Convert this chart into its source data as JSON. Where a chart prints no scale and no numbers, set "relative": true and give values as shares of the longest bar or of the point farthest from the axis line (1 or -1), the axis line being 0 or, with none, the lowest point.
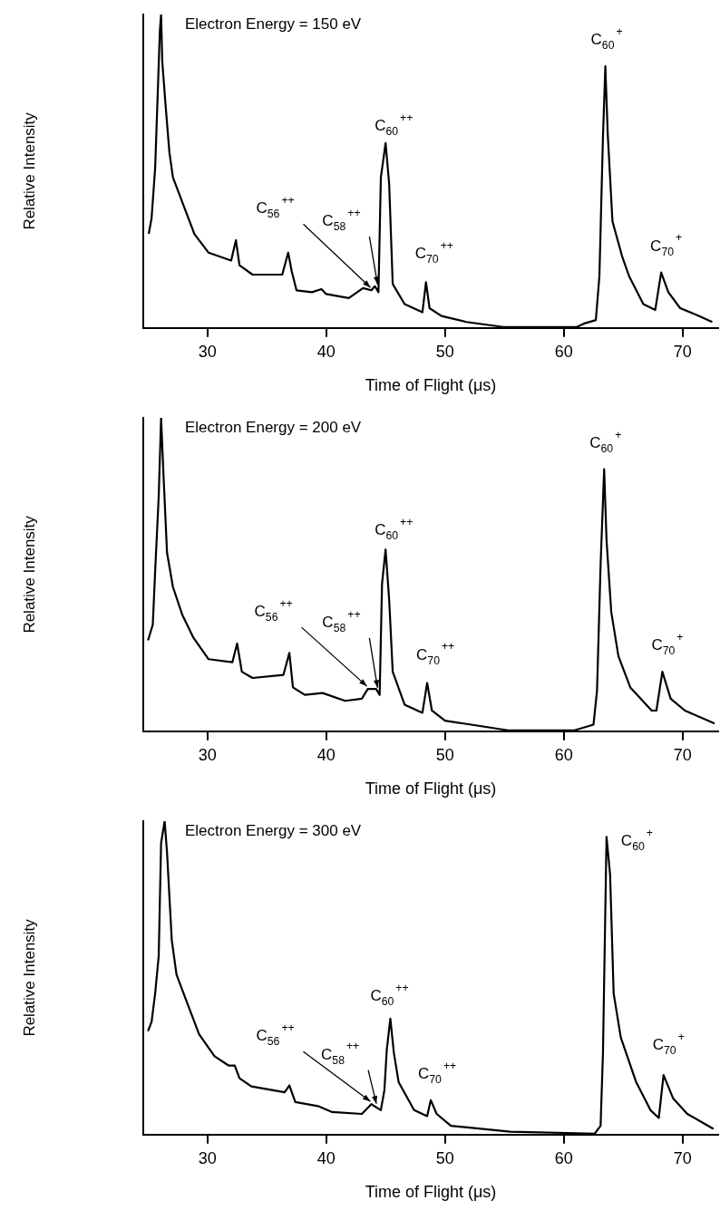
{
  "chart_data": [
    {
      "type": "line",
      "title": "Electron Energy = 150 eV",
      "xlabel": "Time of Flight (μs)",
      "ylabel": "Relative Intensity",
      "relative": true,
      "grid": false,
      "legend": false,
      "marker": "none",
      "color": "#000000",
      "xlim": [
        24.6,
        73
      ],
      "xticks": [
        30,
        40,
        50,
        60,
        70
      ],
      "x": [
        25.06,
        25.3,
        25.6,
        25.8,
        26.0,
        26.1,
        26.2,
        26.5,
        26.8,
        27.1,
        27.6,
        28.2,
        28.9,
        30.1,
        32.0,
        32.4,
        32.7,
        33.8,
        36.3,
        36.8,
        37.1,
        37.5,
        38.8,
        39.6,
        40.0,
        41.9,
        43.1,
        43.8,
        44.1,
        44.4,
        44.6,
        45.0,
        45.3,
        45.6,
        46.6,
        48.1,
        48.4,
        48.7,
        49.7,
        51.8,
        54.9,
        61.1,
        61.8,
        62.7,
        63.0,
        63.3,
        63.5,
        63.7,
        64.1,
        64.9,
        65.5,
        66.7,
        67.7,
        68.2,
        68.8,
        69.8,
        71.4,
        72.5
      ],
      "values": [
        0.3,
        0.35,
        0.51,
        0.73,
        0.95,
        1,
        0.85,
        0.7,
        0.56,
        0.48,
        0.43,
        0.37,
        0.3,
        0.24,
        0.215,
        0.28,
        0.2,
        0.17,
        0.17,
        0.24,
        0.18,
        0.12,
        0.114,
        0.124,
        0.108,
        0.095,
        0.127,
        0.12,
        0.133,
        0.114,
        0.48,
        0.59,
        0.46,
        0.14,
        0.076,
        0.05,
        0.146,
        0.063,
        0.038,
        0.019,
        0.003,
        0.003,
        0.015,
        0.025,
        0.165,
        0.61,
        0.835,
        0.62,
        0.34,
        0.23,
        0.165,
        0.076,
        0.057,
        0.177,
        0.114,
        0.063,
        0.038,
        0.019
      ],
      "annotations": [
        {
          "text": "C$_{56}$$^{++}$",
          "x": 43.8,
          "y": 0.12
        },
        {
          "text": "C$_{58}$$^{++}$",
          "x": 44.4,
          "y": 0.13
        },
        {
          "text": "C$_{60}$$^{++}$",
          "x": 45.0,
          "y": 0.59
        },
        {
          "text": "C$_{70}$$^{++}$",
          "x": 48.4,
          "y": 0.146
        },
        {
          "text": "C$_{60}$$^{+}$",
          "x": 63.5,
          "y": 0.835
        },
        {
          "text": "C$_{70}$$^{+}$",
          "x": 68.2,
          "y": 0.177
        }
      ]
    },
    {
      "type": "line",
      "title": "Electron Energy = 200 eV",
      "xlabel": "Time of Flight (μs)",
      "ylabel": "Relative Intensity",
      "relative": true,
      "grid": false,
      "legend": false,
      "marker": "none",
      "color": "#000000",
      "xlim": [
        24.6,
        73
      ],
      "xticks": [
        30,
        40,
        50,
        60,
        70
      ],
      "x": [
        25.0,
        25.4,
        25.6,
        25.9,
        26.1,
        26.3,
        26.6,
        27.1,
        27.9,
        28.8,
        30.1,
        32.1,
        32.5,
        32.9,
        33.8,
        36.4,
        36.9,
        37.2,
        38.2,
        39.7,
        41.6,
        43.0,
        43.5,
        44.2,
        44.5,
        44.7,
        45.0,
        45.3,
        45.6,
        46.6,
        48.1,
        48.5,
        48.9,
        50.0,
        52.2,
        55.3,
        60.9,
        62.5,
        62.8,
        63.1,
        63.4,
        63.6,
        64.0,
        64.6,
        65.6,
        67.4,
        67.8,
        68.3,
        69.0,
        70.2,
        72.7
      ],
      "values": [
        0.29,
        0.34,
        0.51,
        0.75,
        1,
        0.82,
        0.57,
        0.46,
        0.37,
        0.3,
        0.23,
        0.22,
        0.28,
        0.19,
        0.17,
        0.18,
        0.25,
        0.14,
        0.116,
        0.122,
        0.097,
        0.104,
        0.135,
        0.135,
        0.116,
        0.47,
        0.58,
        0.42,
        0.19,
        0.085,
        0.059,
        0.154,
        0.066,
        0.034,
        0.021,
        0.003,
        0.003,
        0.021,
        0.129,
        0.53,
        0.836,
        0.61,
        0.38,
        0.24,
        0.14,
        0.066,
        0.066,
        0.19,
        0.104,
        0.066,
        0.025
      ],
      "annotations": [
        {
          "text": "C$_{56}$$^{++}$",
          "x": 43.5,
          "y": 0.135
        },
        {
          "text": "C$_{58}$$^{++}$",
          "x": 44.4,
          "y": 0.13
        },
        {
          "text": "C$_{60}$$^{++}$",
          "x": 45.0,
          "y": 0.58
        },
        {
          "text": "C$_{70}$$^{++}$",
          "x": 48.5,
          "y": 0.154
        },
        {
          "text": "C$_{60}$$^{+}$",
          "x": 63.4,
          "y": 0.836
        },
        {
          "text": "C$_{70}$$^{+}$",
          "x": 68.3,
          "y": 0.19
        }
      ]
    },
    {
      "type": "line",
      "title": "Electron Energy = 300 eV",
      "xlabel": "Time of Flight (μs)",
      "ylabel": "Relative Intensity",
      "relative": true,
      "grid": false,
      "legend": false,
      "marker": "none",
      "color": "#000000",
      "xlim": [
        24.6,
        73
      ],
      "xticks": [
        30,
        40,
        50,
        60,
        70
      ],
      "x": [
        25.0,
        25.3,
        25.6,
        25.9,
        26.1,
        26.4,
        26.6,
        27.0,
        27.4,
        28.4,
        29.3,
        30.6,
        31.8,
        32.3,
        32.7,
        33.7,
        36.5,
        36.9,
        37.4,
        39.3,
        40.5,
        43.0,
        43.8,
        44.6,
        44.9,
        45.1,
        45.4,
        45.7,
        46.1,
        47.4,
        48.5,
        48.8,
        49.3,
        50.5,
        55.5,
        62.6,
        63.1,
        63.3,
        63.6,
        63.9,
        64.2,
        64.8,
        66.1,
        67.3,
        68.0,
        68.4,
        69.2,
        70.4,
        72.6
      ],
      "values": [
        0.33,
        0.36,
        0.45,
        0.57,
        0.93,
        1,
        0.9,
        0.62,
        0.51,
        0.41,
        0.32,
        0.25,
        0.22,
        0.22,
        0.18,
        0.154,
        0.135,
        0.157,
        0.104,
        0.091,
        0.072,
        0.066,
        0.097,
        0.078,
        0.142,
        0.27,
        0.37,
        0.26,
        0.167,
        0.078,
        0.059,
        0.11,
        0.066,
        0.028,
        0.009,
        0.003,
        0.028,
        0.26,
        0.95,
        0.83,
        0.45,
        0.31,
        0.167,
        0.078,
        0.053,
        0.19,
        0.116,
        0.066,
        0.018
      ],
      "annotations": [
        {
          "text": "C$_{56}$$^{++}$",
          "x": 43.8,
          "y": 0.097
        },
        {
          "text": "C$_{58}$$^{++}$",
          "x": 44.3,
          "y": 0.09
        },
        {
          "text": "C$_{60}$$^{++}$",
          "x": 45.4,
          "y": 0.37
        },
        {
          "text": "C$_{70}$$^{++}$",
          "x": 48.8,
          "y": 0.11
        },
        {
          "text": "C$_{60}$$^{+}$",
          "x": 63.6,
          "y": 0.95
        },
        {
          "text": "C$_{70}$$^{+}$",
          "x": 68.4,
          "y": 0.19
        }
      ]
    }
  ]
}
